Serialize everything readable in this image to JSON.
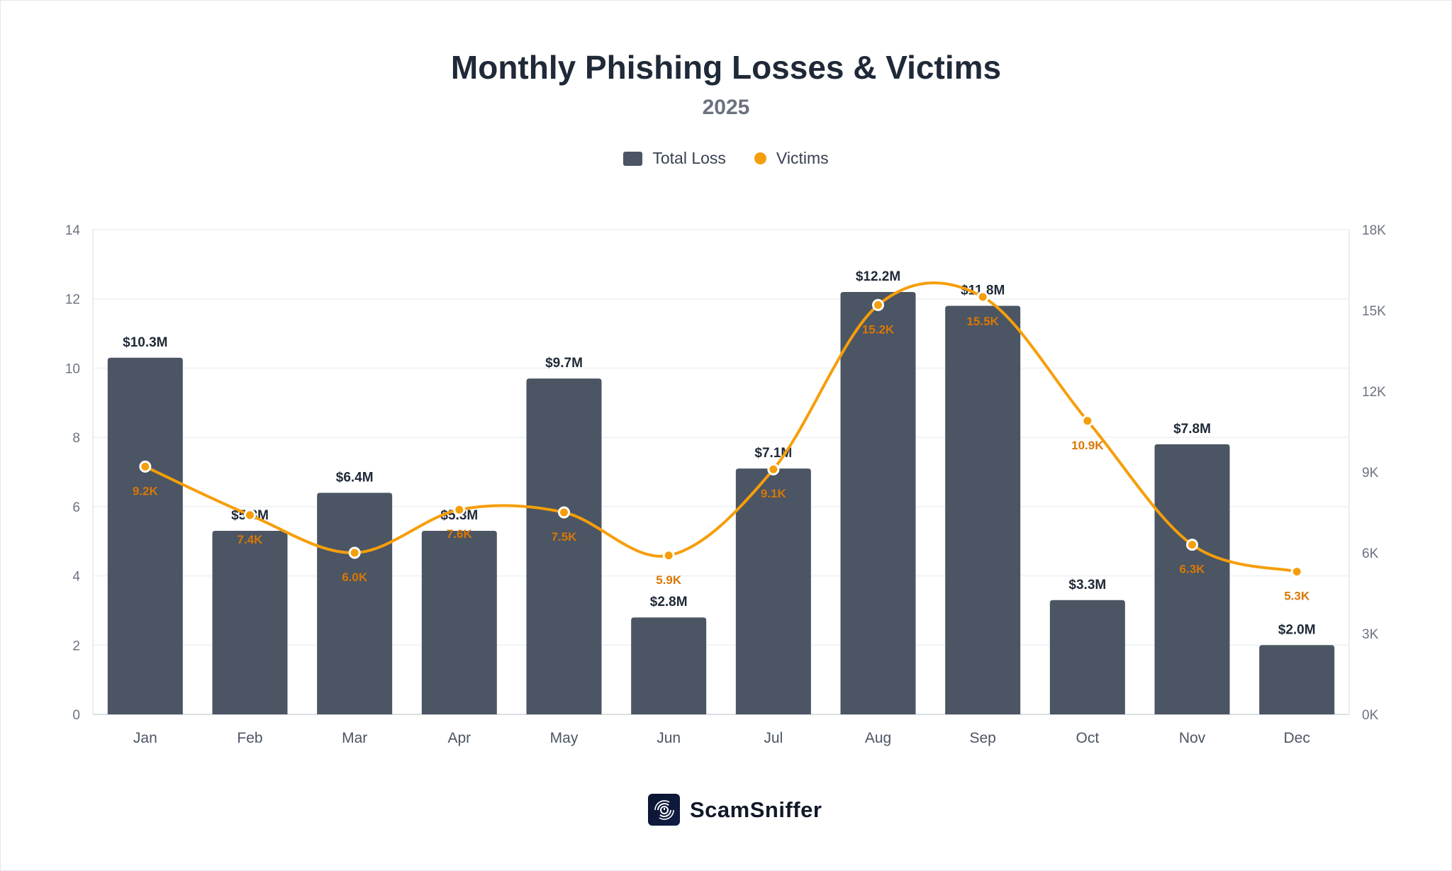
{
  "title": "Monthly Phishing Losses & Victims",
  "subtitle": "2025",
  "legend": {
    "loss": "Total Loss",
    "victims": "Victims"
  },
  "brand": "ScamSniffer",
  "colors": {
    "bar": "#4b5563",
    "line": "#f59e0b",
    "victim_label": "#d97706",
    "text": "#1f2937"
  },
  "chart_data": {
    "type": "bar+line",
    "title": "Monthly Phishing Losses & Victims",
    "subtitle": "2025",
    "categories": [
      "Jan",
      "Feb",
      "Mar",
      "Apr",
      "May",
      "Jun",
      "Jul",
      "Aug",
      "Sep",
      "Oct",
      "Nov",
      "Dec"
    ],
    "series": [
      {
        "name": "Total Loss",
        "type": "bar",
        "axis": "left",
        "values": [
          10.3,
          5.3,
          6.4,
          5.3,
          9.7,
          2.8,
          7.1,
          12.2,
          11.8,
          3.3,
          7.8,
          2.0
        ],
        "labels": [
          "$10.3M",
          "$5.3M",
          "$6.4M",
          "$5.3M",
          "$9.7M",
          "$2.8M",
          "$7.1M",
          "$12.2M",
          "$11.8M",
          "$3.3M",
          "$7.8M",
          "$2.0M"
        ]
      },
      {
        "name": "Victims",
        "type": "line",
        "axis": "right",
        "values": [
          9200,
          7400,
          6000,
          7600,
          7500,
          5900,
          9100,
          15200,
          15500,
          10900,
          6300,
          5300
        ],
        "labels": [
          "9.2K",
          "7.4K",
          "6.0K",
          "7.6K",
          "7.5K",
          "5.9K",
          "9.1K",
          "15.2K",
          "15.5K",
          "10.9K",
          "6.3K",
          "5.3K"
        ]
      }
    ],
    "y_left": {
      "range": [
        0,
        14
      ],
      "ticks": [
        "0",
        "2",
        "4",
        "6",
        "8",
        "10",
        "12",
        "14"
      ]
    },
    "y_right": {
      "range": [
        0,
        18000
      ],
      "ticks": [
        "0K",
        "3K",
        "6K",
        "9K",
        "12K",
        "15K",
        "18K"
      ]
    },
    "grid": true,
    "legend_position": "top-center"
  }
}
